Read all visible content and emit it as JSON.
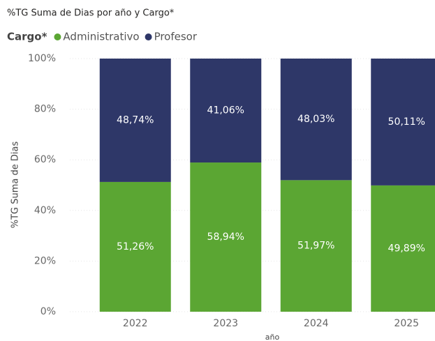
{
  "chart_data": {
    "type": "stacked_bar",
    "title": "%TG Suma de Dias por año y Cargo*",
    "legend_title": "Cargo*",
    "y_label": "%TG Suma de Dias",
    "x_label": "año",
    "categories": [
      "2022",
      "2023",
      "2024",
      "2025"
    ],
    "series": [
      {
        "name": "Administrativo",
        "color": "#5ba633",
        "values": [
          51.26,
          58.94,
          51.97,
          49.89
        ],
        "value_labels": [
          "51,26%",
          "58,94%",
          "51,97%",
          "49,89%"
        ]
      },
      {
        "name": "Profesor",
        "color": "#2e3768",
        "values": [
          48.74,
          41.06,
          48.03,
          50.11
        ],
        "value_labels": [
          "48,74%",
          "41,06%",
          "48,03%",
          "50,11%"
        ]
      }
    ],
    "ylim": [
      0,
      100
    ],
    "yticks": [
      {
        "value": 0,
        "label": "0%"
      },
      {
        "value": 20,
        "label": "20%"
      },
      {
        "value": 40,
        "label": "40%"
      },
      {
        "value": 60,
        "label": "60%"
      },
      {
        "value": 80,
        "label": "80%"
      },
      {
        "value": 100,
        "label": "100%"
      }
    ],
    "grid": true,
    "legend_position": "top-left"
  }
}
